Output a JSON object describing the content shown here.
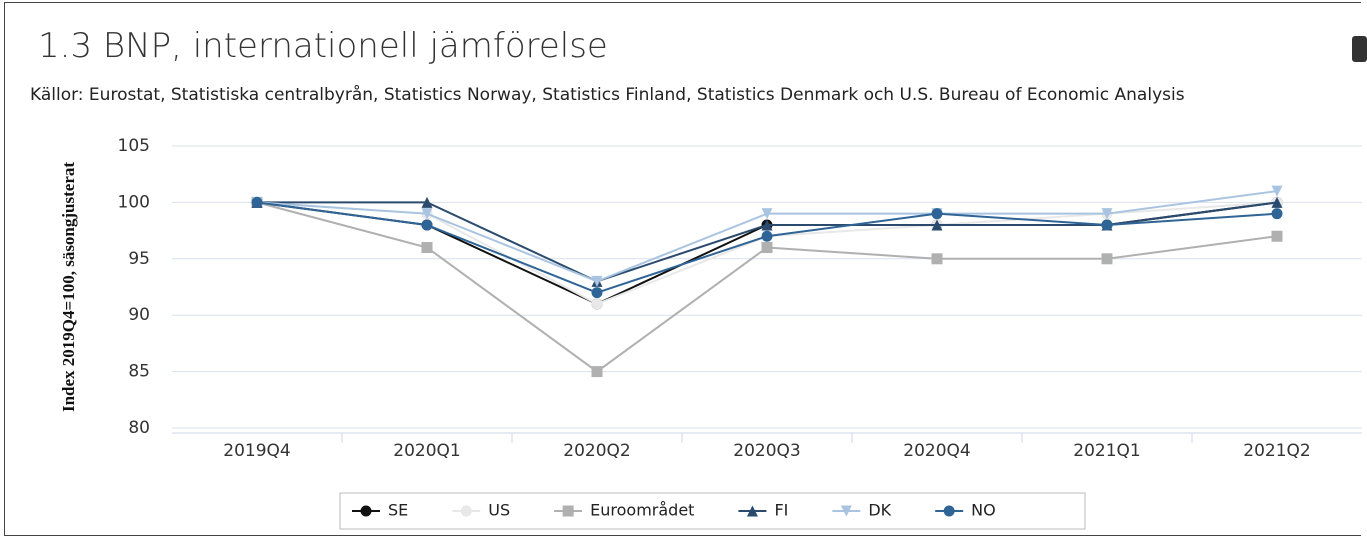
{
  "chart_data": {
    "type": "line",
    "title": "1.3 BNP, internationell jämförelse",
    "subtitle": "Källor: Eurostat, Statistiska centralbyrån, Statistics Norway, Statistics Finland, Statistics Denmark och U.S. Bureau of Economic Analysis",
    "y_label": "Index 2019Q4=100, säsongjusterat",
    "categories": [
      "2019Q4",
      "2020Q1",
      "2020Q2",
      "2020Q3",
      "2020Q4",
      "2021Q1",
      "2021Q2"
    ],
    "series": [
      {
        "name": "SE",
        "color": "#111111",
        "marker": "circle",
        "values": [
          100,
          98,
          91,
          98,
          98,
          98,
          100
        ]
      },
      {
        "name": "US",
        "color": "#e8e8e8",
        "marker": "circle",
        "values": [
          100,
          99,
          91,
          97,
          98,
          99,
          100
        ]
      },
      {
        "name": "Euroområdet",
        "color": "#b0b0b0",
        "marker": "square",
        "values": [
          100,
          96,
          85,
          96,
          95,
          95,
          97
        ]
      },
      {
        "name": "FI",
        "color": "#2a4a6e",
        "marker": "triangle",
        "values": [
          100,
          100,
          93,
          98,
          98,
          98,
          100
        ]
      },
      {
        "name": "DK",
        "color": "#a9c4e0",
        "marker": "triangle-down",
        "values": [
          100,
          99,
          93,
          99,
          99,
          99,
          101
        ]
      },
      {
        "name": "NO",
        "color": "#2f6496",
        "marker": "circle",
        "values": [
          100,
          98,
          92,
          97,
          99,
          98,
          99
        ]
      }
    ],
    "ylim": [
      80,
      105
    ],
    "yticks": [
      80,
      85,
      90,
      95,
      100,
      105
    ],
    "grid": true
  }
}
